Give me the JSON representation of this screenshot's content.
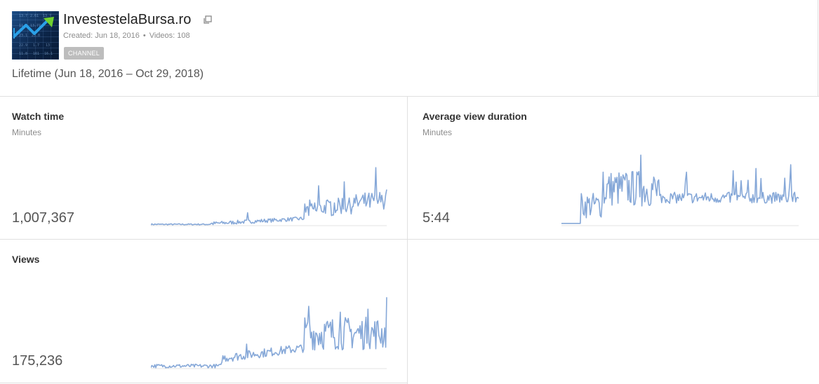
{
  "channel": {
    "name": "InvestestelaBursa.ro",
    "created": "Created: Jun 18, 2016",
    "videos": "Videos: 108",
    "separator": "•",
    "badge": "CHANNEL",
    "thumbnail_icon": "trending-up-arrow-icon",
    "external_icon": "open-in-new-icon"
  },
  "date_range": "Lifetime (Jun 18, 2016 – Oct 29, 2018)",
  "colors": {
    "line": "#86a8d8",
    "axis": "#e3e3e3",
    "badge": "#bdbdbd",
    "divider": "#e0e0e0"
  },
  "metrics": {
    "watch_time": {
      "title": "Watch time",
      "unit": "Minutes",
      "value": "1,007,367"
    },
    "avg_view_duration": {
      "title": "Average view duration",
      "unit": "Minutes",
      "value": "5:44"
    },
    "views": {
      "title": "Views",
      "value": "175,236"
    }
  }
}
